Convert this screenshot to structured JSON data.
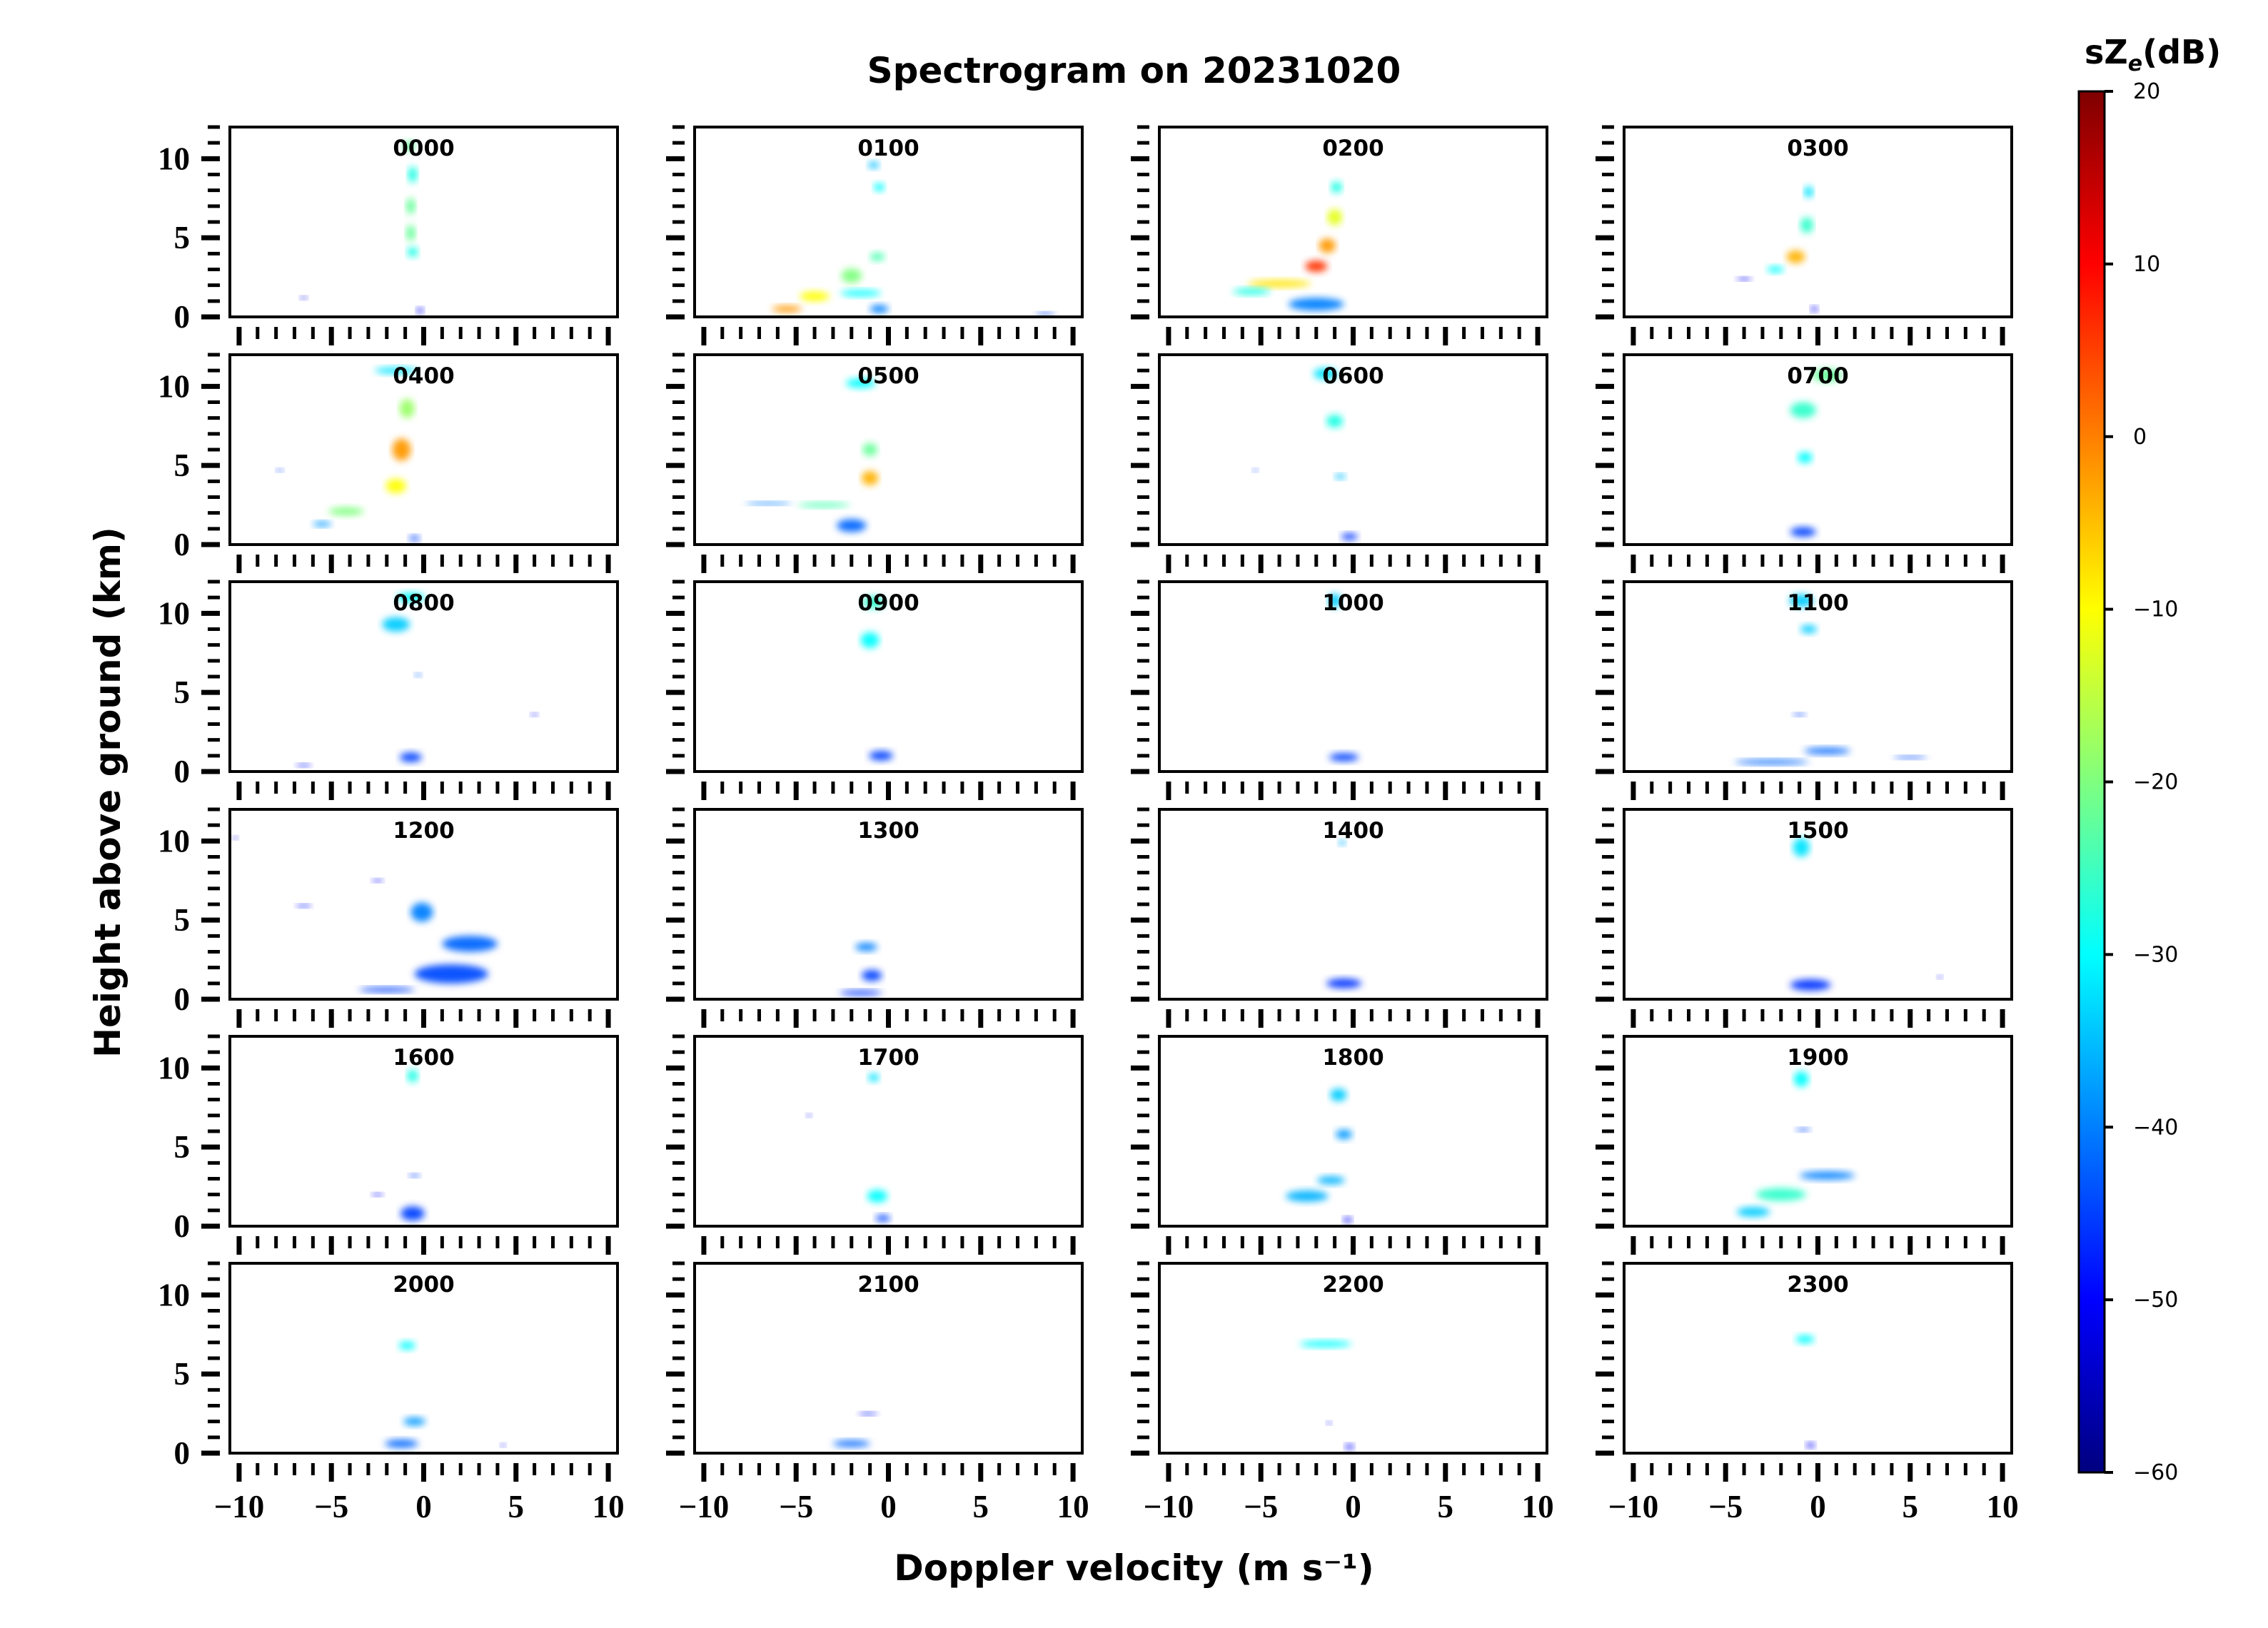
{
  "figure": {
    "title": "Spectrogram on 20231020",
    "xlabel": "Doppler velocity (m s⁻¹)",
    "ylabel": "Height above ground (km)",
    "colorbar": {
      "label": "sZ",
      "label_sub": "e",
      "label_unit": "(dB)",
      "min": -60,
      "max": 20,
      "ticks": [
        "20",
        "10",
        "0",
        "−10",
        "−20",
        "−30",
        "−40",
        "−50",
        "−60"
      ],
      "colormap": "jet",
      "stops": [
        "#00007f",
        "#0000ff",
        "#007fff",
        "#00ffff",
        "#7fff7f",
        "#ffff00",
        "#ff7f00",
        "#ff0000",
        "#7f0000"
      ]
    }
  },
  "chart_data": {
    "type": "heatmap",
    "x_range": [
      -10.5,
      10.5
    ],
    "y_range": [
      0,
      12
    ],
    "x_ticks": [
      "−10",
      "−5",
      "0",
      "5",
      "10"
    ],
    "y_ticks": [
      "0",
      "5",
      "10"
    ],
    "panels": [
      {
        "label": "0000",
        "blobs": [
          {
            "v": -0.8,
            "h": 10.8,
            "w": 0.7,
            "d": 0.6,
            "z": -22
          },
          {
            "v": -0.6,
            "h": 9.0,
            "w": 0.5,
            "d": 1.0,
            "z": -28
          },
          {
            "v": -0.7,
            "h": 7.0,
            "w": 0.5,
            "d": 1.0,
            "z": -22
          },
          {
            "v": -0.7,
            "h": 5.3,
            "w": 0.5,
            "d": 1.0,
            "z": -22
          },
          {
            "v": -0.6,
            "h": 4.1,
            "w": 0.6,
            "d": 0.6,
            "z": -28
          },
          {
            "v": -0.2,
            "h": 0.4,
            "w": 0.4,
            "d": 0.3,
            "z": -50
          },
          {
            "v": -6.5,
            "h": 1.2,
            "w": 0.4,
            "d": 0.1,
            "z": -52
          }
        ]
      },
      {
        "label": "0100",
        "blobs": [
          {
            "v": -0.8,
            "h": 9.6,
            "w": 0.6,
            "d": 0.4,
            "z": -35
          },
          {
            "v": -0.5,
            "h": 8.2,
            "w": 0.6,
            "d": 0.5,
            "z": -30
          },
          {
            "v": -0.6,
            "h": 3.8,
            "w": 0.8,
            "d": 0.5,
            "z": -24
          },
          {
            "v": -2.0,
            "h": 2.6,
            "w": 1.1,
            "d": 0.9,
            "z": -20
          },
          {
            "v": -4.0,
            "h": 1.3,
            "w": 1.6,
            "d": 0.6,
            "z": -10
          },
          {
            "v": -5.5,
            "h": 0.5,
            "w": 1.6,
            "d": 0.4,
            "z": -2
          },
          {
            "v": -1.5,
            "h": 1.5,
            "w": 2.2,
            "d": 0.4,
            "z": -30
          },
          {
            "v": -0.5,
            "h": 0.5,
            "w": 1.0,
            "d": 0.5,
            "z": -40
          },
          {
            "v": 8.5,
            "h": 0.2,
            "w": 1.0,
            "d": 0.1,
            "z": -45
          }
        ]
      },
      {
        "label": "0200",
        "blobs": [
          {
            "v": -0.9,
            "h": 8.2,
            "w": 0.6,
            "d": 0.7,
            "z": -28
          },
          {
            "v": -1.0,
            "h": 6.3,
            "w": 0.8,
            "d": 1.0,
            "z": -12
          },
          {
            "v": -1.4,
            "h": 4.5,
            "w": 0.9,
            "d": 0.9,
            "z": -2
          },
          {
            "v": -2.0,
            "h": 3.2,
            "w": 1.2,
            "d": 0.7,
            "z": 6
          },
          {
            "v": -4.0,
            "h": 2.1,
            "w": 3.4,
            "d": 0.45,
            "z": -8
          },
          {
            "v": -5.5,
            "h": 1.6,
            "w": 2.0,
            "d": 0.4,
            "z": -28
          },
          {
            "v": -2.0,
            "h": 0.8,
            "w": 3.0,
            "d": 0.8,
            "z": -40
          }
        ]
      },
      {
        "label": "0300",
        "blobs": [
          {
            "v": -0.5,
            "h": 7.9,
            "w": 0.5,
            "d": 0.7,
            "z": -32
          },
          {
            "v": -0.6,
            "h": 5.8,
            "w": 0.7,
            "d": 1.0,
            "z": -26
          },
          {
            "v": -1.2,
            "h": 3.8,
            "w": 1.0,
            "d": 0.8,
            "z": -4
          },
          {
            "v": -2.3,
            "h": 3.0,
            "w": 0.9,
            "d": 0.4,
            "z": -30
          },
          {
            "v": -4.0,
            "h": 2.4,
            "w": 0.8,
            "d": 0.1,
            "z": -50
          },
          {
            "v": -0.2,
            "h": 0.5,
            "w": 0.4,
            "d": 0.3,
            "z": -50
          }
        ]
      },
      {
        "label": "0400",
        "blobs": [
          {
            "v": -1.5,
            "h": 11.0,
            "w": 2.3,
            "d": 0.4,
            "z": -32
          },
          {
            "v": -0.9,
            "h": 8.6,
            "w": 0.8,
            "d": 1.2,
            "z": -18
          },
          {
            "v": -1.2,
            "h": 6.0,
            "w": 1.0,
            "d": 1.4,
            "z": -2
          },
          {
            "v": -1.5,
            "h": 3.7,
            "w": 1.1,
            "d": 0.9,
            "z": -10
          },
          {
            "v": -4.2,
            "h": 2.1,
            "w": 1.9,
            "d": 0.5,
            "z": -20
          },
          {
            "v": -5.5,
            "h": 1.3,
            "w": 1.0,
            "d": 0.3,
            "z": -38
          },
          {
            "v": -0.5,
            "h": 0.4,
            "w": 0.6,
            "d": 0.3,
            "z": -45
          },
          {
            "v": -7.8,
            "h": 4.7,
            "w": 0.4,
            "d": 0.1,
            "z": -45
          }
        ]
      },
      {
        "label": "0500",
        "blobs": [
          {
            "v": -1.5,
            "h": 10.2,
            "w": 1.6,
            "d": 0.6,
            "z": -30
          },
          {
            "v": -1.0,
            "h": 6.0,
            "w": 0.8,
            "d": 0.8,
            "z": -22
          },
          {
            "v": -1.0,
            "h": 4.2,
            "w": 0.9,
            "d": 0.9,
            "z": -4
          },
          {
            "v": -3.5,
            "h": 2.5,
            "w": 2.8,
            "d": 0.3,
            "z": -24
          },
          {
            "v": -6.5,
            "h": 2.6,
            "w": 2.5,
            "d": 0.1,
            "z": -40
          },
          {
            "v": -2.0,
            "h": 1.2,
            "w": 1.6,
            "d": 0.8,
            "z": -42
          }
        ]
      },
      {
        "label": "0600",
        "blobs": [
          {
            "v": -1.5,
            "h": 10.8,
            "w": 1.3,
            "d": 0.7,
            "z": -32
          },
          {
            "v": -1.0,
            "h": 7.8,
            "w": 0.9,
            "d": 0.8,
            "z": -28
          },
          {
            "v": -0.7,
            "h": 4.3,
            "w": 0.6,
            "d": 0.3,
            "z": -35
          },
          {
            "v": -0.2,
            "h": 0.5,
            "w": 0.9,
            "d": 0.4,
            "z": -46
          },
          {
            "v": -5.3,
            "h": 4.7,
            "w": 0.2,
            "d": 0.1,
            "z": -45
          }
        ]
      },
      {
        "label": "0700",
        "blobs": [
          {
            "v": 0.5,
            "h": 10.7,
            "w": 1.6,
            "d": 0.8,
            "z": -22
          },
          {
            "v": -0.8,
            "h": 8.5,
            "w": 1.4,
            "d": 1.0,
            "z": -26
          },
          {
            "v": -0.7,
            "h": 5.5,
            "w": 0.8,
            "d": 0.7,
            "z": -30
          },
          {
            "v": -0.8,
            "h": 0.8,
            "w": 1.4,
            "d": 0.6,
            "z": -45
          }
        ]
      },
      {
        "label": "0800",
        "blobs": [
          {
            "v": -0.7,
            "h": 11.0,
            "w": 1.5,
            "d": 0.6,
            "z": -30
          },
          {
            "v": -1.5,
            "h": 9.3,
            "w": 1.5,
            "d": 0.9,
            "z": -34
          },
          {
            "v": -0.3,
            "h": 6.1,
            "w": 0.4,
            "d": 0.2,
            "z": -42
          },
          {
            "v": -0.7,
            "h": 0.9,
            "w": 1.2,
            "d": 0.6,
            "z": -45
          },
          {
            "v": -6.5,
            "h": 0.4,
            "w": 0.8,
            "d": 0.1,
            "z": -48
          },
          {
            "v": 6.0,
            "h": 3.6,
            "w": 0.4,
            "d": 0.1,
            "z": -50
          }
        ]
      },
      {
        "label": "0900",
        "blobs": [
          {
            "v": -0.8,
            "h": 10.7,
            "w": 1.2,
            "d": 0.8,
            "z": -26
          },
          {
            "v": -1.0,
            "h": 8.3,
            "w": 1.0,
            "d": 1.0,
            "z": -30
          },
          {
            "v": -0.4,
            "h": 1.0,
            "w": 1.3,
            "d": 0.6,
            "z": -45
          }
        ]
      },
      {
        "label": "1000",
        "blobs": [
          {
            "v": -1.0,
            "h": 10.8,
            "w": 0.7,
            "d": 0.9,
            "z": -34
          },
          {
            "v": -0.5,
            "h": 0.9,
            "w": 1.6,
            "d": 0.5,
            "z": -45
          }
        ]
      },
      {
        "label": "1100",
        "blobs": [
          {
            "v": -0.9,
            "h": 10.8,
            "w": 1.3,
            "d": 0.8,
            "z": -34
          },
          {
            "v": -0.5,
            "h": 9.0,
            "w": 0.9,
            "d": 0.5,
            "z": -34
          },
          {
            "v": -1.0,
            "h": 3.6,
            "w": 0.7,
            "d": 0.1,
            "z": -45
          },
          {
            "v": 0.5,
            "h": 1.3,
            "w": 2.5,
            "d": 0.4,
            "z": -42
          },
          {
            "v": -2.5,
            "h": 0.6,
            "w": 4.0,
            "d": 0.3,
            "z": -42
          },
          {
            "v": 5.0,
            "h": 0.9,
            "w": 1.8,
            "d": 0.15,
            "z": -44
          }
        ]
      },
      {
        "label": "1200",
        "blobs": [
          {
            "v": -0.1,
            "h": 5.5,
            "w": 1.2,
            "d": 1.2,
            "z": -40
          },
          {
            "v": 2.5,
            "h": 3.5,
            "w": 3.0,
            "d": 1.0,
            "z": -42
          },
          {
            "v": 1.5,
            "h": 1.6,
            "w": 4.0,
            "d": 1.2,
            "z": -44
          },
          {
            "v": -2.0,
            "h": 0.6,
            "w": 3.0,
            "d": 0.3,
            "z": -45
          },
          {
            "v": -6.5,
            "h": 5.9,
            "w": 0.8,
            "d": 0.1,
            "z": -48
          },
          {
            "v": -2.5,
            "h": 7.5,
            "w": 0.6,
            "d": 0.1,
            "z": -50
          },
          {
            "v": -10.2,
            "h": 10.2,
            "w": 0.3,
            "d": 0.1,
            "z": -52
          }
        ]
      },
      {
        "label": "1300",
        "blobs": [
          {
            "v": -1.2,
            "h": 3.3,
            "w": 1.2,
            "d": 0.5,
            "z": -40
          },
          {
            "v": -0.9,
            "h": 1.5,
            "w": 1.1,
            "d": 0.7,
            "z": -45
          },
          {
            "v": -1.5,
            "h": 0.4,
            "w": 2.3,
            "d": 0.3,
            "z": -46
          }
        ]
      },
      {
        "label": "1400",
        "blobs": [
          {
            "v": -0.6,
            "h": 9.9,
            "w": 0.4,
            "d": 0.3,
            "z": -36
          },
          {
            "v": -0.5,
            "h": 1.0,
            "w": 1.9,
            "d": 0.6,
            "z": -46
          }
        ]
      },
      {
        "label": "1500",
        "blobs": [
          {
            "v": -0.9,
            "h": 9.6,
            "w": 0.9,
            "d": 1.2,
            "z": -32
          },
          {
            "v": -0.4,
            "h": 0.9,
            "w": 2.2,
            "d": 0.7,
            "z": -46
          },
          {
            "v": 6.6,
            "h": 1.4,
            "w": 0.2,
            "d": 0.1,
            "z": -48
          }
        ]
      },
      {
        "label": "1600",
        "blobs": [
          {
            "v": -0.6,
            "h": 9.5,
            "w": 0.6,
            "d": 0.8,
            "z": -28
          },
          {
            "v": -0.5,
            "h": 3.2,
            "w": 0.6,
            "d": 0.2,
            "z": -45
          },
          {
            "v": -0.6,
            "h": 0.8,
            "w": 1.3,
            "d": 0.9,
            "z": -45
          },
          {
            "v": -2.5,
            "h": 2.0,
            "w": 0.6,
            "d": 0.1,
            "z": -48
          }
        ]
      },
      {
        "label": "1700",
        "blobs": [
          {
            "v": -0.8,
            "h": 9.4,
            "w": 0.6,
            "d": 0.5,
            "z": -32
          },
          {
            "v": -0.6,
            "h": 1.9,
            "w": 1.1,
            "d": 0.8,
            "z": -30
          },
          {
            "v": -0.3,
            "h": 0.5,
            "w": 0.8,
            "d": 0.4,
            "z": -45
          },
          {
            "v": -4.3,
            "h": 7.0,
            "w": 0.3,
            "d": 0.1,
            "z": -50
          }
        ]
      },
      {
        "label": "1800",
        "blobs": [
          {
            "v": -0.8,
            "h": 8.3,
            "w": 0.9,
            "d": 0.8,
            "z": -34
          },
          {
            "v": -0.5,
            "h": 5.8,
            "w": 0.9,
            "d": 0.6,
            "z": -38
          },
          {
            "v": -1.2,
            "h": 2.9,
            "w": 1.5,
            "d": 0.5,
            "z": -36
          },
          {
            "v": -2.5,
            "h": 1.9,
            "w": 2.3,
            "d": 0.7,
            "z": -36
          },
          {
            "v": -0.3,
            "h": 0.4,
            "w": 0.5,
            "d": 0.3,
            "z": -50
          }
        ]
      },
      {
        "label": "1900",
        "blobs": [
          {
            "v": -0.9,
            "h": 9.3,
            "w": 0.8,
            "d": 1.0,
            "z": -30
          },
          {
            "v": -0.8,
            "h": 6.1,
            "w": 0.8,
            "d": 0.2,
            "z": -44
          },
          {
            "v": 0.5,
            "h": 3.2,
            "w": 3.0,
            "d": 0.5,
            "z": -40
          },
          {
            "v": -2.0,
            "h": 2.0,
            "w": 2.7,
            "d": 0.8,
            "z": -26
          },
          {
            "v": -3.5,
            "h": 0.9,
            "w": 1.8,
            "d": 0.6,
            "z": -34
          }
        ]
      },
      {
        "label": "2000",
        "blobs": [
          {
            "v": -0.9,
            "h": 6.8,
            "w": 0.9,
            "d": 0.5,
            "z": -30
          },
          {
            "v": -0.5,
            "h": 2.0,
            "w": 1.2,
            "d": 0.5,
            "z": -38
          },
          {
            "v": -1.2,
            "h": 0.6,
            "w": 1.8,
            "d": 0.5,
            "z": -42
          },
          {
            "v": 4.3,
            "h": 0.5,
            "w": 0.3,
            "d": 0.1,
            "z": -48
          }
        ]
      },
      {
        "label": "2100",
        "blobs": [
          {
            "v": -1.1,
            "h": 2.5,
            "w": 1.0,
            "d": 0.15,
            "z": -48
          },
          {
            "v": -2.0,
            "h": 0.6,
            "w": 2.0,
            "d": 0.4,
            "z": -42
          }
        ]
      },
      {
        "label": "2200",
        "blobs": [
          {
            "v": -1.5,
            "h": 6.9,
            "w": 2.8,
            "d": 0.4,
            "z": -30
          },
          {
            "v": -1.3,
            "h": 1.9,
            "w": 0.3,
            "d": 0.1,
            "z": -50
          },
          {
            "v": -0.2,
            "h": 0.4,
            "w": 0.5,
            "d": 0.3,
            "z": -50
          }
        ]
      },
      {
        "label": "2300",
        "blobs": [
          {
            "v": -0.7,
            "h": 7.2,
            "w": 1.0,
            "d": 0.5,
            "z": -30
          },
          {
            "v": -0.4,
            "h": 0.5,
            "w": 0.5,
            "d": 0.3,
            "z": -50
          }
        ]
      }
    ]
  }
}
